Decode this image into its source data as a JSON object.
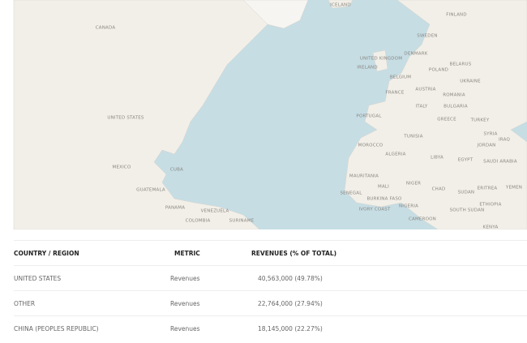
{
  "map": {
    "labels": [
      "CANADA",
      "ICELAND",
      "FINLAND",
      "SWEDEN",
      "UNITED KINGDOM",
      "DENMARK",
      "IRELAND",
      "POLAND",
      "BELARUS",
      "BELGIUM",
      "UKRAINE",
      "FRANCE",
      "AUSTRIA",
      "ROMANIA",
      "ITALY",
      "BULGARIA",
      "PORTUGAL",
      "GREECE",
      "TURKEY",
      "UNITED STATES",
      "SYRIA",
      "IRAQ",
      "TUNISIA",
      "JORDAN",
      "MOROCCO",
      "ALGERIA",
      "LIBYA",
      "EGYPT",
      "SAUDI ARABIA",
      "MEXICO",
      "CUBA",
      "MAURITANIA",
      "MALI",
      "NIGER",
      "CHAD",
      "SUDAN",
      "ERITREA",
      "YEMEN",
      "GUATEMALA",
      "SENEGAL",
      "BURKINA FASO",
      "NIGERIA",
      "ETHIOPIA",
      "SOUTH SUDAN",
      "PANAMA",
      "VENEZUELA",
      "IVORY COAST",
      "CAMEROON",
      "COLOMBIA",
      "SURINAME",
      "KENYA"
    ]
  },
  "table": {
    "header": [
      "COUNTRY / REGION",
      "METRIC",
      "REVENUES (% OF TOTAL)"
    ],
    "rows": [
      [
        "UNITED STATES",
        "Revenues",
        "40,563,000 (49.78%)"
      ],
      [
        "OTHER",
        "Revenues",
        "22,764,000 (27.94%)"
      ],
      [
        "CHINA (PEOPLES REPUBLIC)",
        "Revenues",
        "18,145,000 (22.27%)"
      ]
    ]
  }
}
